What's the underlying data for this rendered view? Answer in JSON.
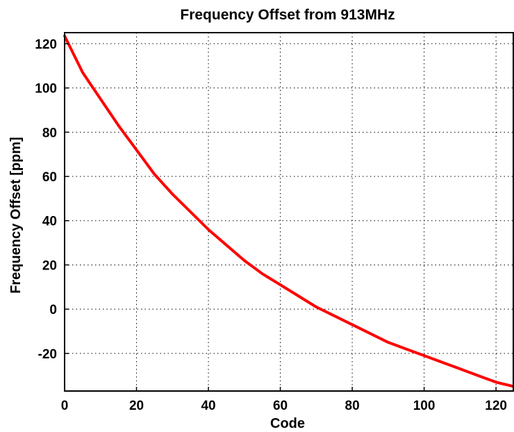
{
  "chart_data": {
    "type": "line",
    "title": "Frequency Offset from 913MHz",
    "xlabel": "Code",
    "ylabel": "Frequency Offset [ppm]",
    "xlim": [
      0,
      125
    ],
    "ylim": [
      -37,
      125
    ],
    "grid": true,
    "x_ticks": [
      0,
      20,
      40,
      60,
      80,
      100,
      120
    ],
    "y_ticks": [
      -20,
      0,
      20,
      40,
      60,
      80,
      100,
      120
    ],
    "x_tick_labels": [
      "0",
      "20",
      "40",
      "60",
      "80",
      "100",
      "120"
    ],
    "y_tick_labels": [
      "-20",
      "0",
      "20",
      "40",
      "60",
      "80",
      "100",
      "120"
    ],
    "series": [
      {
        "color": "#ff0000",
        "x": [
          0,
          5,
          10,
          15,
          20,
          25,
          30,
          35,
          40,
          45,
          50,
          55,
          60,
          65,
          70,
          75,
          80,
          85,
          90,
          95,
          100,
          105,
          110,
          115,
          120,
          125
        ],
        "y": [
          123.5,
          107,
          95,
          83,
          72,
          61,
          52,
          44,
          36,
          29,
          22,
          16,
          11,
          6,
          1,
          -3,
          -7,
          -11,
          -15,
          -18,
          -21,
          -24,
          -27,
          -30,
          -33,
          -35
        ]
      }
    ]
  }
}
